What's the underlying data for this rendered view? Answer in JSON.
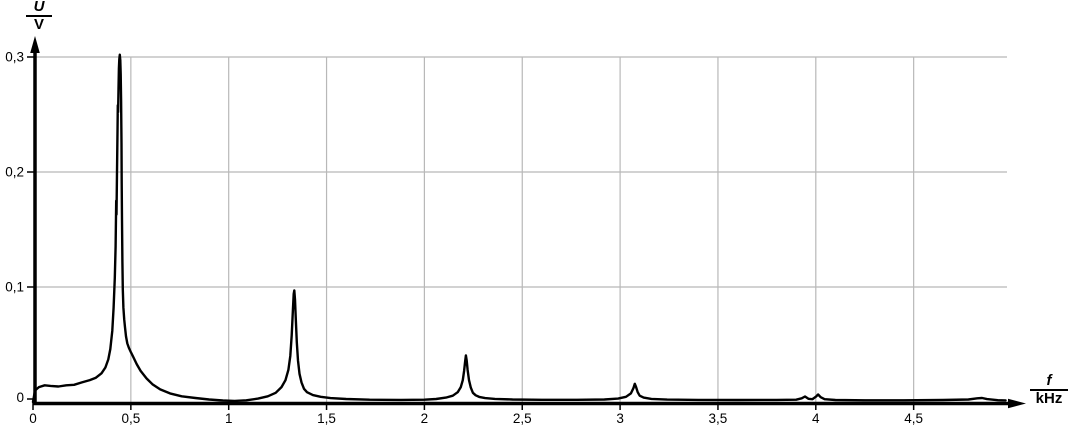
{
  "chart_data": {
    "type": "line",
    "title": "",
    "x_axis": {
      "quantity": "f",
      "unit": "kHz",
      "range": [
        0,
        5.2
      ],
      "ticks": [
        {
          "f": 0,
          "label": "0"
        },
        {
          "f": 0.5,
          "label": "0,5"
        },
        {
          "f": 1,
          "label": "1"
        },
        {
          "f": 1.5,
          "label": "1,5"
        },
        {
          "f": 2,
          "label": "2"
        },
        {
          "f": 2.5,
          "label": "2,5"
        },
        {
          "f": 3,
          "label": "3"
        },
        {
          "f": 3.5,
          "label": "3,5"
        },
        {
          "f": 4,
          "label": "4"
        },
        {
          "f": 4.5,
          "label": "4,5"
        }
      ]
    },
    "y_axis": {
      "quantity": "U",
      "unit": "V",
      "range": [
        0,
        0.32
      ],
      "ticks": [
        {
          "u": 0,
          "label": "0"
        },
        {
          "u": 0.1,
          "label": "0,1"
        },
        {
          "u": 0.2,
          "label": "0,2"
        },
        {
          "u": 0.3,
          "label": "0,3"
        }
      ]
    },
    "grid": {
      "shown": true,
      "vertical_at_khz": [
        0.5,
        1,
        1.5,
        2,
        2.5,
        3,
        3.5,
        4,
        4.5
      ],
      "horizontal_at_v": [
        0.1,
        0.2,
        0.3
      ]
    },
    "peaks": [
      {
        "f_khz": 0.44,
        "u_v": 0.302
      },
      {
        "f_khz": 1.33,
        "u_v": 0.097
      },
      {
        "f_khz": 2.21,
        "u_v": 0.04
      },
      {
        "f_khz": 3.07,
        "u_v": 0.016
      },
      {
        "f_khz": 3.95,
        "u_v": 0.005
      },
      {
        "f_khz": 4.01,
        "u_v": 0.007
      },
      {
        "f_khz": 4.85,
        "u_v": 0.0035
      }
    ],
    "curve_points_f_u": [
      [
        0,
        0
      ],
      [
        0.01,
        0.01
      ],
      [
        0.03,
        0.013
      ],
      [
        0.06,
        0.0145
      ],
      [
        0.09,
        0.014
      ],
      [
        0.13,
        0.0135
      ],
      [
        0.17,
        0.0145
      ],
      [
        0.21,
        0.015
      ],
      [
        0.25,
        0.017
      ],
      [
        0.29,
        0.019
      ],
      [
        0.32,
        0.021
      ],
      [
        0.35,
        0.025
      ],
      [
        0.37,
        0.03
      ],
      [
        0.385,
        0.037
      ],
      [
        0.395,
        0.046
      ],
      [
        0.405,
        0.062
      ],
      [
        0.412,
        0.082
      ],
      [
        0.418,
        0.108
      ],
      [
        0.422,
        0.135
      ],
      [
        0.425,
        0.175
      ],
      [
        0.4265,
        0.163
      ],
      [
        0.429,
        0.2
      ],
      [
        0.432,
        0.235
      ],
      [
        0.4335,
        0.258
      ],
      [
        0.435,
        0.252
      ],
      [
        0.437,
        0.272
      ],
      [
        0.439,
        0.29
      ],
      [
        0.441,
        0.298
      ],
      [
        0.4435,
        0.302
      ],
      [
        0.446,
        0.297
      ],
      [
        0.448,
        0.285
      ],
      [
        0.45,
        0.262
      ],
      [
        0.452,
        0.225
      ],
      [
        0.4535,
        0.19
      ],
      [
        0.455,
        0.158
      ],
      [
        0.457,
        0.122
      ],
      [
        0.459,
        0.098
      ],
      [
        0.462,
        0.082
      ],
      [
        0.466,
        0.072
      ],
      [
        0.47,
        0.065
      ],
      [
        0.475,
        0.057
      ],
      [
        0.482,
        0.051
      ],
      [
        0.49,
        0.047
      ],
      [
        0.5,
        0.0435
      ],
      [
        0.51,
        0.04
      ],
      [
        0.53,
        0.033
      ],
      [
        0.55,
        0.027
      ],
      [
        0.58,
        0.0205
      ],
      [
        0.61,
        0.0155
      ],
      [
        0.65,
        0.011
      ],
      [
        0.7,
        0.0075
      ],
      [
        0.76,
        0.005
      ],
      [
        0.83,
        0.0035
      ],
      [
        0.9,
        0.0022
      ],
      [
        0.97,
        0.0013
      ],
      [
        1.03,
        0.001
      ],
      [
        1.09,
        0.0015
      ],
      [
        1.15,
        0.003
      ],
      [
        1.2,
        0.005
      ],
      [
        1.24,
        0.008
      ],
      [
        1.27,
        0.013
      ],
      [
        1.29,
        0.019
      ],
      [
        1.305,
        0.028
      ],
      [
        1.315,
        0.04
      ],
      [
        1.322,
        0.058
      ],
      [
        1.328,
        0.08
      ],
      [
        1.332,
        0.094
      ],
      [
        1.335,
        0.097
      ],
      [
        1.339,
        0.089
      ],
      [
        1.343,
        0.072
      ],
      [
        1.348,
        0.052
      ],
      [
        1.354,
        0.036
      ],
      [
        1.362,
        0.0245
      ],
      [
        1.372,
        0.017
      ],
      [
        1.385,
        0.0115
      ],
      [
        1.4,
        0.0085
      ],
      [
        1.43,
        0.006
      ],
      [
        1.47,
        0.0045
      ],
      [
        1.52,
        0.0034
      ],
      [
        1.6,
        0.0026
      ],
      [
        1.72,
        0.002
      ],
      [
        1.88,
        0.0018
      ],
      [
        2.0,
        0.002
      ],
      [
        2.06,
        0.0026
      ],
      [
        2.11,
        0.0038
      ],
      [
        2.145,
        0.0055
      ],
      [
        2.17,
        0.0085
      ],
      [
        2.186,
        0.013
      ],
      [
        2.196,
        0.019
      ],
      [
        2.203,
        0.027
      ],
      [
        2.208,
        0.035
      ],
      [
        2.212,
        0.0405
      ],
      [
        2.216,
        0.036
      ],
      [
        2.221,
        0.028
      ],
      [
        2.228,
        0.019
      ],
      [
        2.237,
        0.0125
      ],
      [
        2.248,
        0.008
      ],
      [
        2.262,
        0.0058
      ],
      [
        2.28,
        0.0044
      ],
      [
        2.31,
        0.0034
      ],
      [
        2.36,
        0.0027
      ],
      [
        2.45,
        0.0022
      ],
      [
        2.6,
        0.0019
      ],
      [
        2.78,
        0.0019
      ],
      [
        2.92,
        0.0022
      ],
      [
        2.99,
        0.003
      ],
      [
        3.03,
        0.0045
      ],
      [
        3.055,
        0.0075
      ],
      [
        3.068,
        0.012
      ],
      [
        3.075,
        0.0158
      ],
      [
        3.082,
        0.013
      ],
      [
        3.09,
        0.0085
      ],
      [
        3.1,
        0.0055
      ],
      [
        3.12,
        0.0038
      ],
      [
        3.16,
        0.0027
      ],
      [
        3.24,
        0.0021
      ],
      [
        3.4,
        0.0018
      ],
      [
        3.6,
        0.0017
      ],
      [
        3.8,
        0.0018
      ],
      [
        3.9,
        0.002
      ],
      [
        3.928,
        0.0032
      ],
      [
        3.945,
        0.0048
      ],
      [
        3.962,
        0.0028
      ],
      [
        3.982,
        0.0024
      ],
      [
        4.0,
        0.0045
      ],
      [
        4.012,
        0.0065
      ],
      [
        4.025,
        0.0042
      ],
      [
        4.045,
        0.0024
      ],
      [
        4.1,
        0.0017
      ],
      [
        4.25,
        0.0015
      ],
      [
        4.45,
        0.0015
      ],
      [
        4.65,
        0.0017
      ],
      [
        4.78,
        0.0022
      ],
      [
        4.825,
        0.0032
      ],
      [
        4.85,
        0.0035
      ],
      [
        4.875,
        0.0025
      ],
      [
        4.93,
        0.0016
      ],
      [
        4.97,
        0.0014
      ]
    ],
    "colors": {
      "curve": "#000000",
      "axis": "#000000",
      "grid": "#b8b8b8",
      "background": "#ffffff",
      "text": "#000000"
    }
  }
}
